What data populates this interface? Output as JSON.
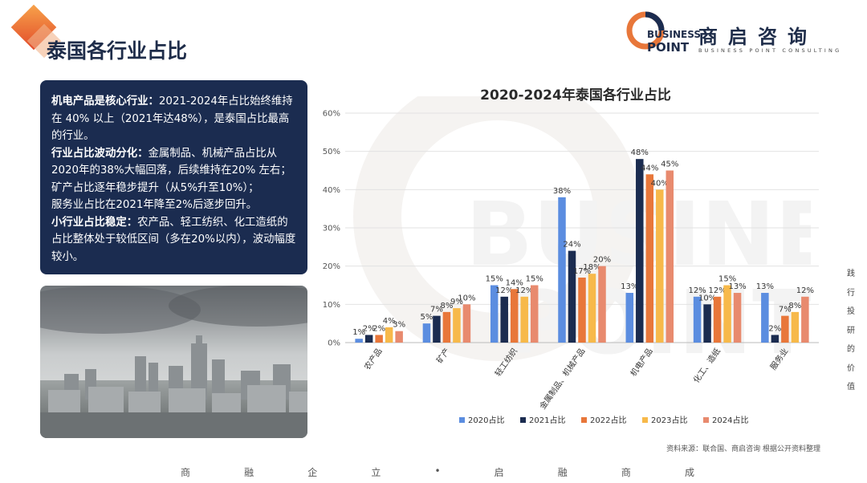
{
  "page": {
    "title": "泰国各行业占比"
  },
  "logo": {
    "en_line1": "BUSINESS",
    "en_line2": "POINT",
    "cn": "商启咨询",
    "sub": "BUSINESS POINT CONSULTING"
  },
  "summary": {
    "p1_bold": "机电产品是核心行业：",
    "p1_text": "2021-2024年占比始终维持在 40% 以上（2021年达48%），是泰国占比最高的行业。",
    "p2_bold": "行业占比波动分化：",
    "p2_text": "金属制品、机械产品占比从2020年的38%大幅回落，后续维持在20% 左右；",
    "p3_text": "矿产占比逐年稳步提升（从5%升至10%）；",
    "p4_text": "服务业占比在2021年降至2%后逐步回升。",
    "p5_bold": "小行业占比稳定：",
    "p5_text": "农产品、轻工纺织、化工造纸的占比整体处于较低区间（多在20%以内），波动幅度较小。"
  },
  "chart_data": {
    "type": "bar",
    "title": "2020-2024年泰国各行业占比",
    "categories": [
      "农产品",
      "矿产",
      "轻工纺织",
      "金属制品、机械产品",
      "机电产品",
      "化工、造纸",
      "服务业"
    ],
    "series": [
      {
        "name": "2020占比",
        "color": "#5b8de0",
        "values": [
          1,
          5,
          15,
          38,
          13,
          12,
          13
        ]
      },
      {
        "name": "2021占比",
        "color": "#1b2c50",
        "values": [
          2,
          7,
          12,
          24,
          48,
          10,
          2
        ]
      },
      {
        "name": "2022占比",
        "color": "#e8773a",
        "values": [
          2,
          8,
          14,
          17,
          44,
          12,
          7
        ]
      },
      {
        "name": "2023占比",
        "color": "#f7b94a",
        "values": [
          4,
          9,
          12,
          18,
          40,
          15,
          8
        ]
      },
      {
        "name": "2024占比",
        "color": "#e88a6e",
        "values": [
          3,
          10,
          15,
          20,
          45,
          13,
          12
        ]
      }
    ],
    "ylim": [
      0,
      60
    ],
    "yticks": [
      "0%",
      "10%",
      "20%",
      "30%",
      "40%",
      "50%",
      "60%"
    ],
    "value_suffix": "%",
    "legend": "bottom",
    "grid": true
  },
  "source": "资料来源：联合国、商启咨询 根据公开资料整理",
  "footer": [
    "商",
    "融",
    "企",
    "立",
    "•",
    "启",
    "融",
    "商",
    "成"
  ],
  "side_slogan": [
    "践",
    "行",
    "投",
    "研",
    "的",
    "价",
    "值"
  ],
  "watermark": {
    "line1": "BUSINESS",
    "line2": "POINT"
  },
  "colors": {
    "navy": "#1b2c50",
    "accent": "#e8773a"
  }
}
